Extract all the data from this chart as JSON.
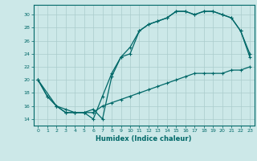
{
  "xlabel": "Humidex (Indice chaleur)",
  "bg_color": "#cce8e8",
  "grid_color": "#aacccc",
  "line_color": "#006868",
  "xlim": [
    -0.5,
    23.5
  ],
  "ylim": [
    13.0,
    31.5
  ],
  "xticks": [
    0,
    1,
    2,
    3,
    4,
    5,
    6,
    7,
    8,
    9,
    10,
    11,
    12,
    13,
    14,
    15,
    16,
    17,
    18,
    19,
    20,
    21,
    22,
    23
  ],
  "yticks": [
    14,
    16,
    18,
    20,
    22,
    24,
    26,
    28,
    30
  ],
  "line1_x": [
    0,
    1,
    2,
    3,
    4,
    5,
    6,
    7,
    8,
    9,
    10,
    11,
    12,
    13,
    14,
    15,
    16,
    17,
    18,
    19,
    20,
    21,
    22,
    23
  ],
  "line1_y": [
    20,
    17.5,
    16,
    15,
    15,
    15,
    14,
    17.5,
    21,
    23.5,
    25,
    27.5,
    28.5,
    29.0,
    29.5,
    30.5,
    30.5,
    30.0,
    30.5,
    30.5,
    30.0,
    29.5,
    27.5,
    24.0
  ],
  "line2_x": [
    0,
    2,
    3,
    4,
    5,
    6,
    7,
    8,
    9,
    10,
    11,
    12,
    13,
    14,
    15,
    16,
    17,
    18,
    19,
    20,
    21,
    22,
    23
  ],
  "line2_y": [
    20,
    16,
    15,
    15,
    15,
    15.5,
    14,
    20.5,
    23.5,
    24,
    27.5,
    28.5,
    29.0,
    29.5,
    30.5,
    30.5,
    30.0,
    30.5,
    30.5,
    30.0,
    29.5,
    27.5,
    23.5
  ],
  "line3_x": [
    0,
    1,
    2,
    3,
    4,
    5,
    6,
    7,
    8,
    9,
    10,
    11,
    12,
    13,
    14,
    15,
    16,
    17,
    18,
    19,
    20,
    21,
    22,
    23
  ],
  "line3_y": [
    20,
    17.5,
    16,
    15.5,
    15,
    15,
    15,
    16,
    16.5,
    17.0,
    17.5,
    18.0,
    18.5,
    19.0,
    19.5,
    20.0,
    20.5,
    21.0,
    21.0,
    21.0,
    21.0,
    21.5,
    21.5,
    22.0
  ]
}
